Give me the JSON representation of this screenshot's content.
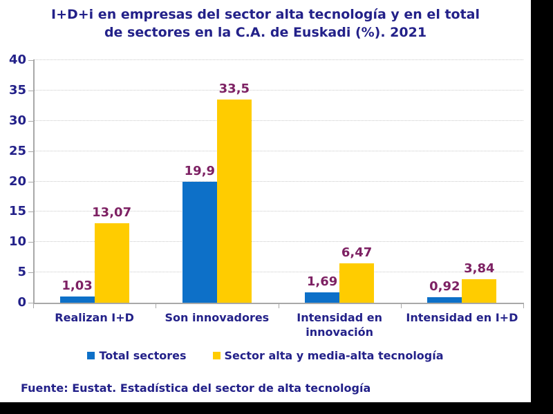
{
  "title_lines": [
    "I+D+i en empresas del sector alta tecnología y en el total",
    "de sectores en la C.A. de Euskadi (%). 2021"
  ],
  "source_note": "Fuente: Eustat. Estadística del sector de alta tecnología",
  "colors": {
    "title_text": "#232189",
    "axis_text": "#232189",
    "value_label_text": "#7D2163",
    "series_blue": "#0D70C8",
    "series_yellow": "#FFCC00",
    "axis_line": "#A8A8A8",
    "gridline": "#C9C9C9",
    "frame": "#000000"
  },
  "legend": {
    "items": [
      {
        "label": "Total sectores",
        "color": "#0D70C8"
      },
      {
        "label": "Sector alta y media-alta tecnología",
        "color": "#FFCC00"
      }
    ]
  },
  "chart_data": {
    "type": "bar",
    "title": "I+D+i en empresas del sector alta tecnología y en el total de sectores en la C.A. de Euskadi (%). 2021",
    "categories": [
      "Realizan I+D",
      "Son innovadores",
      "Intensidad en innovación",
      "Intensidad en I+D"
    ],
    "series": [
      {
        "name": "Total sectores",
        "color": "#0D70C8",
        "values": [
          1.03,
          19.9,
          1.69,
          0.92
        ],
        "value_labels": [
          "1,03",
          "19,9",
          "1,69",
          "0,92"
        ]
      },
      {
        "name": "Sector alta y media-alta tecnología",
        "color": "#FFCC00",
        "values": [
          13.07,
          33.5,
          6.47,
          3.84
        ],
        "value_labels": [
          "13,07",
          "33,5",
          "6,47",
          "3,84"
        ]
      }
    ],
    "xlabel": "",
    "ylabel": "",
    "ylim": [
      0,
      40
    ],
    "yticks": [
      0,
      5,
      10,
      15,
      20,
      25,
      30,
      35,
      40
    ],
    "grid": "horizontal-dotted",
    "legend_position": "bottom"
  }
}
